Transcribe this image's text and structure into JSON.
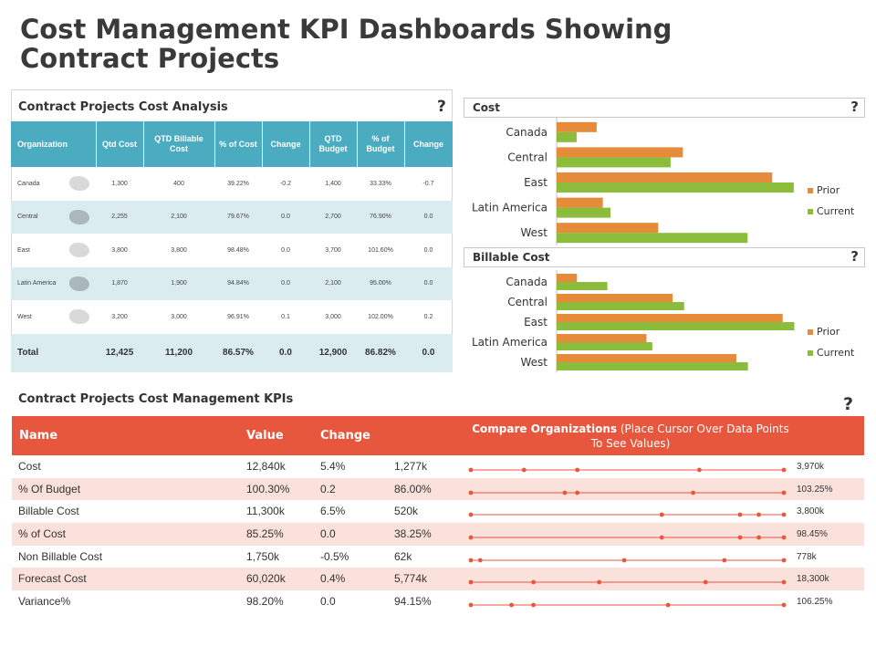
{
  "title": "Cost Management KPI Dashboards Showing Contract Projects",
  "analysis": {
    "title": "Contract Projects Cost Analysis",
    "help": "?",
    "headers": [
      "Organization",
      "Qtd Cost",
      "QTD Billable Cost",
      "% of Cost",
      "Change",
      "QTD Budget",
      "% of Budget",
      "Change"
    ],
    "rows": [
      [
        "Canada",
        "1,300",
        "400",
        "39.22%",
        "-0.2",
        "1,400",
        "33.33%",
        "-0.7"
      ],
      [
        "Central",
        "2,255",
        "2,100",
        "79.67%",
        "0.0",
        "2,700",
        "76.90%",
        "0.0"
      ],
      [
        "East",
        "3,800",
        "3,800",
        "98.48%",
        "0.0",
        "3,700",
        "101.60%",
        "0.0"
      ],
      [
        "Latin America",
        "1,870",
        "1,900",
        "94.84%",
        "0.0",
        "2,100",
        "95.00%",
        "0.0"
      ],
      [
        "West",
        "3,200",
        "3,000",
        "96.91%",
        "0.1",
        "3,000",
        "102.00%",
        "0.2"
      ]
    ],
    "total": [
      "Total",
      "12,425",
      "11,200",
      "86.57%",
      "0.0",
      "12,900",
      "86.82%",
      "0.0"
    ]
  },
  "chart_data": [
    {
      "type": "bar",
      "orientation": "horizontal",
      "title": "Cost",
      "categories": [
        "Canada",
        "Central",
        "East",
        "Latin America",
        "West"
      ],
      "series": [
        {
          "name": "Prior",
          "color": "#e58b3a",
          "values": [
            1300,
            4100,
            7000,
            1500,
            3300
          ]
        },
        {
          "name": "Current",
          "color": "#8bbc3c",
          "values": [
            650,
            3700,
            7700,
            1750,
            6200
          ]
        }
      ],
      "xlim": [
        0,
        8000
      ],
      "legend": "right",
      "grid": false
    },
    {
      "type": "bar",
      "orientation": "horizontal",
      "title": "Billable Cost",
      "categories": [
        "Canada",
        "Central",
        "East",
        "Latin America",
        "West"
      ],
      "series": [
        {
          "name": "Prior",
          "color": "#e58b3a",
          "values": [
            700,
            4000,
            7800,
            3100,
            6200
          ]
        },
        {
          "name": "Current",
          "color": "#8bbc3c",
          "values": [
            1750,
            4400,
            8200,
            3300,
            6600
          ]
        }
      ],
      "xlim": [
        0,
        8500
      ],
      "legend": "right",
      "grid": false
    },
    {
      "type": "scatter",
      "title": "Compare Organizations",
      "series": [
        {
          "name": "Cost",
          "values": [
            0,
            0.17,
            0.34,
            0.73,
            1.0
          ]
        },
        {
          "name": "% Of Budget",
          "values": [
            0,
            0.3,
            0.34,
            0.71,
            1.0
          ]
        },
        {
          "name": "Billable Cost",
          "values": [
            0,
            0.61,
            0.86,
            0.92,
            1.0
          ]
        },
        {
          "name": "% of Cost",
          "values": [
            0,
            0.61,
            0.86,
            0.92,
            1.0
          ]
        },
        {
          "name": "Non Billable Cost",
          "values": [
            0,
            0.03,
            0.49,
            0.81,
            1.0
          ]
        },
        {
          "name": "Forecast Cost",
          "values": [
            0,
            0.2,
            0.41,
            0.75,
            1.0
          ]
        },
        {
          "name": "Variance%",
          "values": [
            0,
            0.13,
            0.2,
            0.63,
            1.0
          ]
        }
      ],
      "note": "values are relative positions (0 = min, 1 = max) along each sparkline"
    }
  ],
  "charts": {
    "cost": {
      "title": "Cost",
      "help": "?"
    },
    "billable": {
      "title": "Billable Cost",
      "help": "?"
    }
  },
  "kpi": {
    "title": "Contract Projects Cost Management KPIs",
    "help": "?",
    "headers": {
      "name": "Name",
      "value": "Value",
      "change": "Change"
    },
    "compare_bold": "Compare Organizations",
    "compare_rest": " (Place Cursor Over Data Points To See Values)",
    "rows": [
      {
        "name": "Cost",
        "value": "12,840k",
        "change": "5.4%",
        "min": "1,277k",
        "max": "3,970k"
      },
      {
        "name": "% Of Budget",
        "value": "100.30%",
        "change": "0.2",
        "min": "86.00%",
        "max": "103.25%"
      },
      {
        "name": "Billable Cost",
        "value": "11,300k",
        "change": "6.5%",
        "min": "520k",
        "max": "3,800k"
      },
      {
        "name": "% of Cost",
        "value": "85.25%",
        "change": "0.0",
        "min": "38.25%",
        "max": "98.45%"
      },
      {
        "name": "Non Billable Cost",
        "value": "1,750k",
        "change": "-0.5%",
        "min": "62k",
        "max": "778k"
      },
      {
        "name": "Forecast Cost",
        "value": "60,020k",
        "change": "0.4%",
        "min": "5,774k",
        "max": "18,300k"
      },
      {
        "name": "Variance%",
        "value": "98.20%",
        "change": "0.0",
        "min": "94.15%",
        "max": "106.25%"
      }
    ]
  }
}
